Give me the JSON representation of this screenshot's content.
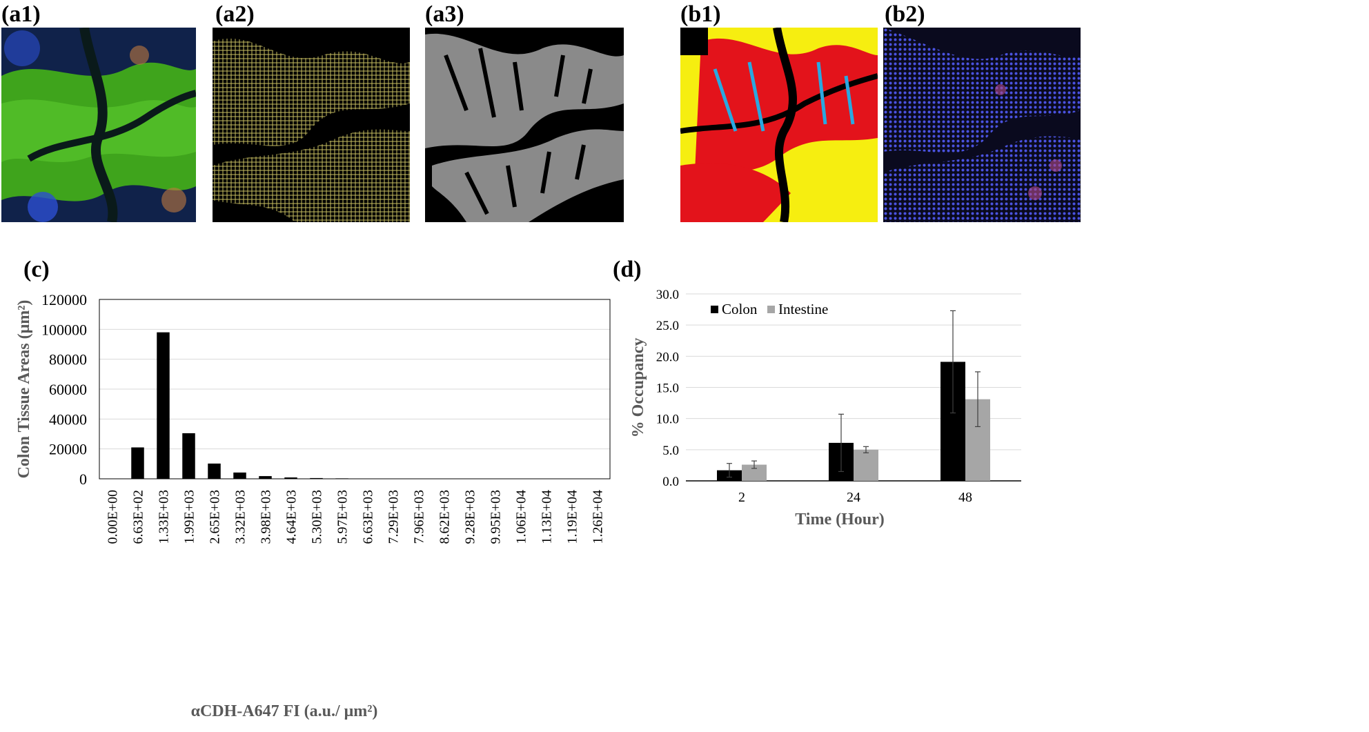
{
  "panel_labels": {
    "a1": "(a1)",
    "a2": "(a2)",
    "a3": "(a3)",
    "b1": "(b1)",
    "b2": "(b2)",
    "c": "(c)",
    "d": "(d)"
  },
  "micrograph_colors": {
    "a1": {
      "bg": "#0d1c3a",
      "tissue": "#3fa41c",
      "nuclei": "#2c4fd0",
      "accent": "#c07a40"
    },
    "a2": {
      "bg": "#000000",
      "tissue": "#c9bf62"
    },
    "a3": {
      "bg": "#000000",
      "tissue": "#8a8a8a"
    },
    "b1": {
      "bg": "#000000",
      "red": "#e3131b",
      "yellow": "#f6ee10",
      "blue": "#2aa8e0"
    },
    "b2": {
      "bg": "#0a0a1e",
      "nuclei": "#4a52e0",
      "accent": "#b04a8a"
    }
  },
  "chart_data": [
    {
      "type": "bar",
      "ylabel": "Colon Tissue Areas (μm²)",
      "xlabel": "αCDH-A647 FI (a.u./ μm²)",
      "ylim": [
        0,
        120000
      ],
      "yticks": [
        "0",
        "20000",
        "40000",
        "60000",
        "80000",
        "100000",
        "120000"
      ],
      "grid": true,
      "categories": [
        "0.00E+00",
        "6.63E+02",
        "1.33E+03",
        "1.99E+03",
        "2.65E+03",
        "3.32E+03",
        "3.98E+03",
        "4.64E+03",
        "5.30E+03",
        "5.97E+03",
        "6.63E+03",
        "7.29E+03",
        "7.96E+03",
        "8.62E+03",
        "9.28E+03",
        "9.95E+03",
        "1.06E+04",
        "1.13E+04",
        "1.19E+04",
        "1.26E+04"
      ],
      "values": [
        0,
        21000,
        98000,
        30500,
        10200,
        4200,
        1800,
        900,
        500,
        300,
        200,
        150,
        100,
        80,
        60,
        50,
        40,
        30,
        20,
        10
      ],
      "color": "#000000"
    },
    {
      "type": "bar",
      "ylabel": "% Occupancy",
      "xlabel": "Time (Hour)",
      "ylim": [
        0,
        30
      ],
      "yticks": [
        "0.0",
        "5.0",
        "10.0",
        "15.0",
        "20.0",
        "25.0",
        "30.0"
      ],
      "grid": true,
      "legend_position": "top-left",
      "categories": [
        "2",
        "24",
        "48"
      ],
      "series": [
        {
          "name": "Colon",
          "values": [
            1.7,
            6.1,
            19.1
          ],
          "errors": [
            1.1,
            4.6,
            8.2
          ],
          "color": "#000000"
        },
        {
          "name": "Intestine",
          "values": [
            2.6,
            5.0,
            13.1
          ],
          "errors": [
            0.6,
            0.5,
            4.4
          ],
          "color": "#a6a6a6"
        }
      ]
    }
  ]
}
